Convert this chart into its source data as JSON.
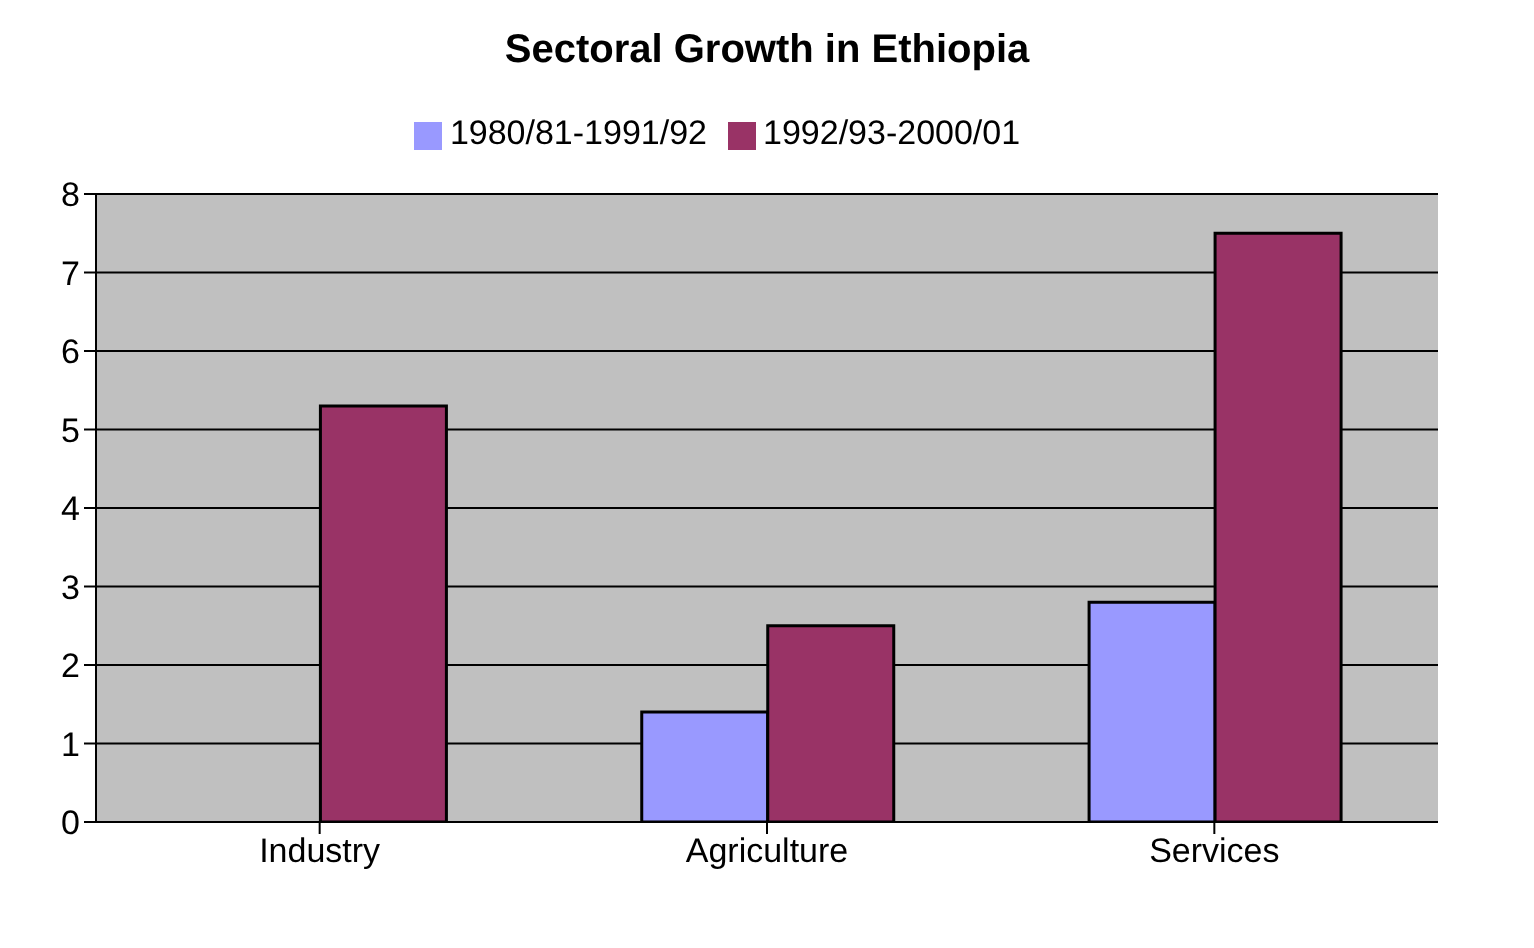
{
  "chart_data": {
    "type": "bar",
    "title": "Sectoral Growth in Ethiopia",
    "categories": [
      "Industry",
      "Agriculture",
      "Services"
    ],
    "series": [
      {
        "name": "1980/81-1991/92",
        "color": "#9999ff",
        "values": [
          0,
          1.4,
          2.8
        ]
      },
      {
        "name": "1992/93-2000/01",
        "color": "#993366",
        "values": [
          5.3,
          2.5,
          7.5
        ]
      }
    ],
    "ylim": [
      0,
      8
    ],
    "yticks": [
      0,
      1,
      2,
      3,
      4,
      5,
      6,
      7,
      8
    ],
    "grid": "y",
    "legend": "top"
  }
}
